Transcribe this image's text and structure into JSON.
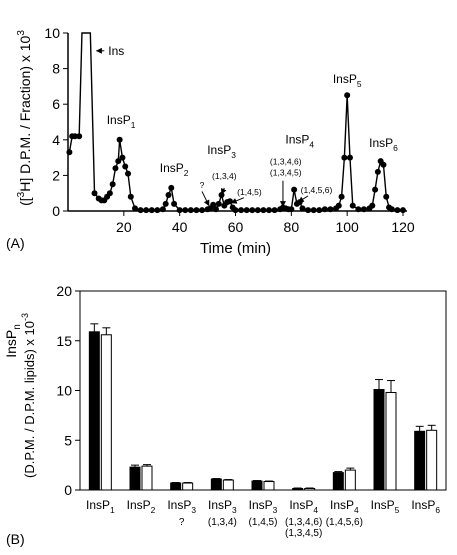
{
  "panel_a": {
    "label": "(A)",
    "chart_data": {
      "type": "line",
      "xlabel": "Time (min)",
      "ylabel_parts": [
        "([",
        "3",
        "H] D.P.M. / Fraction) x 10",
        "3"
      ],
      "xlim": [
        0,
        120
      ],
      "ylim": [
        0,
        10
      ],
      "xticks": [
        20,
        40,
        60,
        80,
        100,
        120
      ],
      "yticks": [
        0,
        2,
        4,
        6,
        8,
        10
      ],
      "x": [
        0.5,
        1.5,
        2.5,
        4,
        5,
        8,
        9.5,
        11,
        12,
        13,
        14,
        15,
        16,
        17,
        18,
        18.5,
        19.5,
        20.5,
        21.5,
        22.5,
        24,
        26,
        28,
        30,
        32,
        34,
        35,
        36,
        37,
        38,
        40,
        42,
        44,
        46,
        48,
        50,
        51,
        52,
        53,
        54,
        55,
        56,
        57,
        58,
        59,
        60,
        62,
        64,
        66,
        68,
        70,
        72,
        74,
        76,
        77,
        78,
        79,
        80,
        81,
        82,
        83,
        84,
        86,
        88,
        90,
        92,
        94,
        96,
        97,
        98,
        99,
        100,
        101,
        102,
        104,
        106,
        108,
        109,
        110,
        111,
        112,
        113,
        114,
        115,
        116,
        118,
        120
      ],
      "y": [
        3.3,
        4.2,
        4.2,
        4.2,
        10,
        10,
        1.0,
        0.7,
        0.6,
        0.6,
        0.8,
        1.0,
        1.5,
        2.4,
        2.8,
        4.0,
        3.0,
        2.5,
        2.1,
        0.8,
        0.15,
        0.05,
        0.05,
        0.05,
        0.05,
        0.1,
        0.4,
        0.9,
        1.3,
        0.4,
        0.05,
        0.05,
        0.05,
        0.05,
        0.05,
        0.1,
        0.15,
        0.35,
        0.1,
        0.4,
        0.9,
        0.3,
        0.5,
        0.55,
        0.2,
        0.05,
        0.05,
        0.05,
        0.05,
        0.05,
        0.05,
        0.05,
        0.05,
        0.1,
        0.2,
        0.15,
        0.1,
        0.1,
        1.2,
        0.4,
        0.5,
        0.15,
        0.05,
        0.05,
        0.05,
        0.1,
        0.1,
        0.15,
        0.3,
        0.8,
        3.0,
        6.5,
        3.0,
        0.3,
        0.1,
        0.1,
        0.15,
        0.3,
        1.2,
        2.2,
        2.8,
        2.6,
        0.8,
        0.2,
        0.1,
        0.05,
        0.05
      ],
      "annotations": [
        {
          "text": "Ins",
          "x": 13,
          "y": 9.0
        },
        {
          "text": "InsP",
          "sub": "1",
          "x": 19,
          "y": 4.9
        },
        {
          "text": "InsP",
          "sub": "2",
          "x": 38,
          "y": 2.2
        },
        {
          "text": "InsP",
          "sub": "3",
          "x": 55,
          "y": 3.2
        },
        {
          "text": "InsP",
          "sub": "4",
          "x": 83,
          "y": 3.8
        },
        {
          "text": "InsP",
          "sub": "5",
          "x": 100,
          "y": 7.2
        },
        {
          "text": "InsP",
          "sub": "6",
          "x": 113,
          "y": 3.6
        },
        {
          "text": "?",
          "x": 48,
          "y": 1.3
        },
        {
          "text": "(1,3,4)",
          "x": 56,
          "y": 1.8
        },
        {
          "text": "(1,4,5)",
          "x": 65,
          "y": 0.9
        },
        {
          "text": "(1,3,4,6)",
          "x": 78,
          "y": 2.6
        },
        {
          "text": "(1,3,4,5)",
          "x": 78,
          "y": 2.0
        },
        {
          "text": "(1,4,5,6)",
          "x": 89,
          "y": 1.0
        }
      ]
    }
  },
  "panel_b": {
    "label": "(B)",
    "chart_data": {
      "type": "bar",
      "ylabel_top": [
        "InsP",
        "n"
      ],
      "ylabel_parts": [
        "(D.P.M. / D.P.M. lipids) x 10",
        "-3"
      ],
      "ylim": [
        0,
        20
      ],
      "yticks": [
        0,
        5,
        10,
        15,
        20
      ],
      "categories": [
        {
          "name": "InsP",
          "sub": "1",
          "extra": []
        },
        {
          "name": "InsP",
          "sub": "2",
          "extra": []
        },
        {
          "name": "InsP",
          "sub": "3",
          "extra": [
            "?"
          ]
        },
        {
          "name": "InsP",
          "sub": "3",
          "extra": [
            "(1,3,4)"
          ]
        },
        {
          "name": "InsP",
          "sub": "3",
          "extra": [
            "(1,4,5)"
          ]
        },
        {
          "name": "InsP",
          "sub": "4",
          "extra": [
            "(1,3,4,6)",
            "(1,3,4,5)"
          ]
        },
        {
          "name": "InsP",
          "sub": "4",
          "extra": [
            "(1,4,5,6)"
          ]
        },
        {
          "name": "InsP",
          "sub": "5",
          "extra": []
        },
        {
          "name": "InsP",
          "sub": "6",
          "extra": []
        }
      ],
      "series": [
        {
          "fill": "#000000",
          "values": [
            15.9,
            2.3,
            0.7,
            1.1,
            0.9,
            0.15,
            1.75,
            10.1,
            5.9
          ],
          "errors": [
            0.8,
            0.2,
            0.05,
            0.05,
            0.05,
            0.05,
            0.1,
            1.0,
            0.5
          ]
        },
        {
          "fill": "#ffffff",
          "values": [
            15.6,
            2.4,
            0.7,
            1.0,
            0.85,
            0.15,
            2.0,
            9.8,
            6.0
          ],
          "errors": [
            0.7,
            0.15,
            0.05,
            0.05,
            0.05,
            0.05,
            0.2,
            1.2,
            0.5
          ]
        }
      ]
    }
  }
}
